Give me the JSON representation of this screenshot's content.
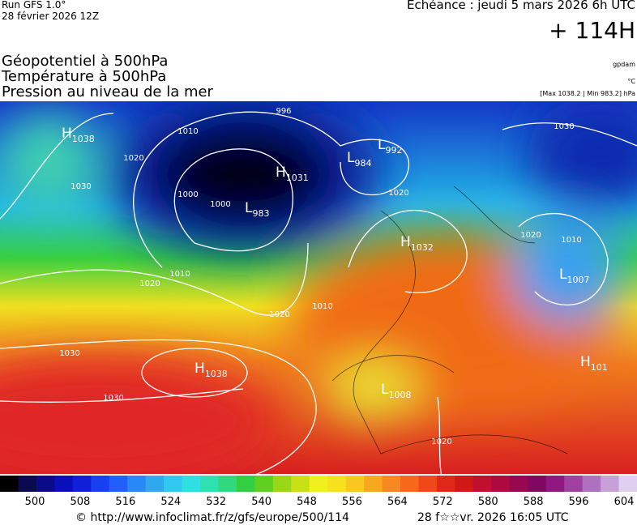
{
  "header": {
    "run": "Run GFS 1.0°",
    "run_date": "28 février 2026 12Z",
    "valid": "Echéance : jeudi 5 mars 2026 6h UTC",
    "lead": "+ 114H",
    "fields": [
      "Géopotentiel à 500hPa",
      "Température à 500hPa",
      "Pression au niveau de la mer"
    ],
    "units": [
      "gpdam",
      "°C"
    ],
    "extremes": "[Max 1038.2 | Min 983.2] hPa"
  },
  "centers": [
    {
      "type": "H",
      "value": "1038"
    },
    {
      "type": "L",
      "value": "992"
    },
    {
      "type": "L",
      "value": "984"
    },
    {
      "type": "H",
      "value": "1031"
    },
    {
      "type": "L",
      "value": "983"
    },
    {
      "type": "H",
      "value": "1032"
    },
    {
      "type": "L",
      "value": "1007"
    },
    {
      "type": "H",
      "value": "1038"
    },
    {
      "type": "L",
      "value": "1008"
    },
    {
      "type": "H",
      "value": "101"
    }
  ],
  "isobar_labels": [
    "996",
    "1010",
    "1020",
    "1030",
    "1000",
    "1000",
    "1010",
    "1020",
    "1020",
    "1030",
    "1030",
    "1020",
    "1010",
    "1030",
    "1020",
    "1010",
    "1020"
  ],
  "scale": {
    "labels": [
      500,
      508,
      516,
      524,
      532,
      540,
      548,
      556,
      564,
      572,
      580,
      588,
      596,
      604
    ]
  },
  "footer": {
    "source": "© http://www.infoclimat.fr/z/gfs/europe/500/114",
    "generated": "28 f☆☆vr. 2026 16:05 UTC"
  }
}
